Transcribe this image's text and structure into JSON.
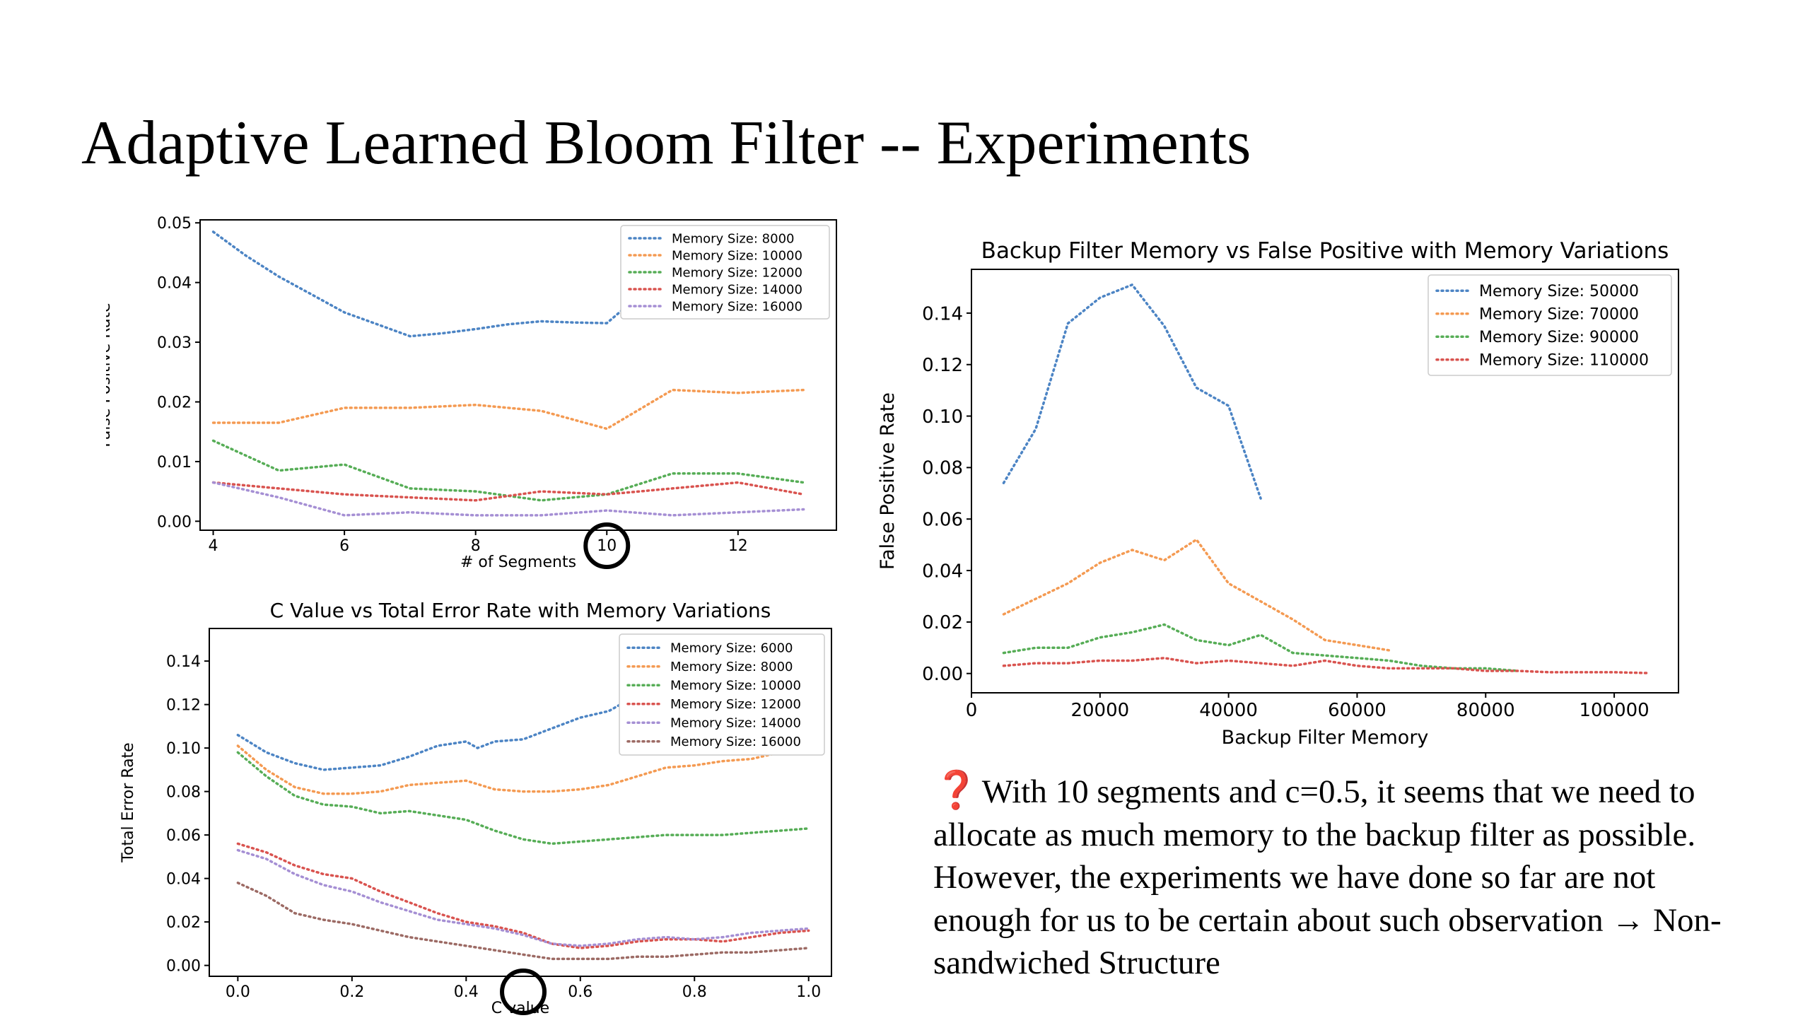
{
  "slide": {
    "title": "Adaptive Learned Bloom Filter -- Experiments",
    "note_icon": "red-question-mark-icon",
    "note_text": "With 10 segments and c=0.5, it seems that we need to allocate as much memory to the backup filter as possible. However, the experiments we have done so far are not enough for us to be certain about such observation → Non-sandwiched Structure"
  },
  "colors": {
    "blue": "#4c84c4",
    "orange": "#f49a52",
    "green": "#56ad56",
    "red": "#d9534f",
    "purple": "#a58fd4",
    "brown": "#9c6a64"
  },
  "chart_data": [
    {
      "type": "line",
      "title": "",
      "xlabel": "# of Segments",
      "ylabel": "False Positive Rate",
      "xlim": [
        3.8,
        13.5
      ],
      "ylim": [
        -0.0015,
        0.0505
      ],
      "xticks": [
        4,
        6,
        8,
        10,
        12
      ],
      "yticks": [
        0.0,
        0.01,
        0.02,
        0.03,
        0.04,
        0.05
      ],
      "ytick_labels": [
        "0.00",
        "0.01",
        "0.02",
        "0.03",
        "0.04",
        "0.05"
      ],
      "grid": false,
      "legend_position": "top-right",
      "highlight": {
        "axis": "x",
        "value": 10
      },
      "series": [
        {
          "name": "Memory Size: 8000",
          "color": "#4c84c4",
          "x": [
            4,
            4.5,
            5,
            5.5,
            6,
            6.5,
            7,
            7.5,
            8,
            8.5,
            9,
            9.5,
            10,
            10.3
          ],
          "y": [
            0.0485,
            0.0445,
            0.041,
            0.038,
            0.035,
            0.033,
            0.031,
            0.0315,
            0.0322,
            0.033,
            0.0335,
            0.0333,
            0.0332,
            0.036
          ]
        },
        {
          "name": "Memory Size: 10000",
          "color": "#f49a52",
          "x": [
            4,
            5,
            6,
            7,
            8,
            9,
            10,
            11,
            12,
            13
          ],
          "y": [
            0.0165,
            0.0165,
            0.019,
            0.019,
            0.0195,
            0.0185,
            0.0155,
            0.022,
            0.0215,
            0.022
          ]
        },
        {
          "name": "Memory Size: 12000",
          "color": "#56ad56",
          "x": [
            4,
            5,
            6,
            7,
            8,
            9,
            10,
            11,
            12,
            13
          ],
          "y": [
            0.0135,
            0.0085,
            0.0095,
            0.0055,
            0.005,
            0.0035,
            0.0045,
            0.008,
            0.008,
            0.0065
          ]
        },
        {
          "name": "Memory Size: 14000",
          "color": "#d9534f",
          "x": [
            4,
            5,
            6,
            7,
            8,
            9,
            10,
            11,
            12,
            13
          ],
          "y": [
            0.0065,
            0.0055,
            0.0045,
            0.004,
            0.0035,
            0.005,
            0.0045,
            0.0055,
            0.0065,
            0.0045
          ]
        },
        {
          "name": "Memory Size: 16000",
          "color": "#a58fd4",
          "x": [
            4,
            5,
            6,
            7,
            8,
            9,
            10,
            11,
            12,
            13
          ],
          "y": [
            0.0065,
            0.004,
            0.001,
            0.0015,
            0.001,
            0.001,
            0.0018,
            0.001,
            0.0015,
            0.002
          ]
        }
      ]
    },
    {
      "type": "line",
      "title": "C Value vs Total Error Rate with Memory Variations",
      "xlabel": "C value",
      "ylabel": "Total Error Rate",
      "xlim": [
        -0.05,
        1.04
      ],
      "ylim": [
        -0.005,
        0.155
      ],
      "xticks": [
        0.0,
        0.2,
        0.4,
        0.6,
        0.8,
        1.0
      ],
      "xtick_labels": [
        "0.0",
        "0.2",
        "0.4",
        "0.6",
        "0.8",
        "1.0"
      ],
      "yticks": [
        0.0,
        0.02,
        0.04,
        0.06,
        0.08,
        0.1,
        0.12,
        0.14
      ],
      "ytick_labels": [
        "0.00",
        "0.02",
        "0.04",
        "0.06",
        "0.08",
        "0.10",
        "0.12",
        "0.14"
      ],
      "grid": false,
      "legend_position": "top-right",
      "highlight": {
        "axis": "x",
        "value": 0.5
      },
      "series": [
        {
          "name": "Memory Size: 6000",
          "color": "#4c84c4",
          "x": [
            0.0,
            0.05,
            0.1,
            0.15,
            0.2,
            0.25,
            0.3,
            0.35,
            0.4,
            0.42,
            0.45,
            0.5,
            0.55,
            0.6,
            0.65,
            0.67
          ],
          "y": [
            0.106,
            0.098,
            0.093,
            0.09,
            0.091,
            0.092,
            0.096,
            0.101,
            0.103,
            0.1,
            0.103,
            0.104,
            0.109,
            0.114,
            0.117,
            0.12
          ]
        },
        {
          "name": "Memory Size: 8000",
          "color": "#f49a52",
          "x": [
            0.0,
            0.05,
            0.1,
            0.15,
            0.2,
            0.25,
            0.3,
            0.35,
            0.4,
            0.45,
            0.5,
            0.55,
            0.6,
            0.65,
            0.7,
            0.75,
            0.8,
            0.85,
            0.9,
            0.95,
            0.98
          ],
          "y": [
            0.101,
            0.09,
            0.082,
            0.079,
            0.079,
            0.08,
            0.083,
            0.084,
            0.085,
            0.081,
            0.08,
            0.08,
            0.081,
            0.083,
            0.087,
            0.091,
            0.092,
            0.094,
            0.095,
            0.098,
            0.101
          ]
        },
        {
          "name": "Memory Size: 10000",
          "color": "#56ad56",
          "x": [
            0.0,
            0.05,
            0.1,
            0.15,
            0.2,
            0.25,
            0.3,
            0.35,
            0.4,
            0.45,
            0.5,
            0.55,
            0.6,
            0.65,
            0.7,
            0.75,
            0.8,
            0.85,
            0.9,
            0.95,
            1.0
          ],
          "y": [
            0.098,
            0.087,
            0.078,
            0.074,
            0.073,
            0.07,
            0.071,
            0.069,
            0.067,
            0.062,
            0.058,
            0.056,
            0.057,
            0.058,
            0.059,
            0.06,
            0.06,
            0.06,
            0.061,
            0.062,
            0.063
          ]
        },
        {
          "name": "Memory Size: 12000",
          "color": "#d9534f",
          "x": [
            0.0,
            0.05,
            0.1,
            0.15,
            0.2,
            0.25,
            0.3,
            0.35,
            0.4,
            0.45,
            0.5,
            0.55,
            0.6,
            0.65,
            0.7,
            0.75,
            0.8,
            0.85,
            0.9,
            0.95,
            1.0
          ],
          "y": [
            0.056,
            0.052,
            0.046,
            0.042,
            0.04,
            0.034,
            0.029,
            0.024,
            0.02,
            0.018,
            0.015,
            0.01,
            0.008,
            0.009,
            0.011,
            0.012,
            0.012,
            0.011,
            0.013,
            0.015,
            0.016
          ]
        },
        {
          "name": "Memory Size: 14000",
          "color": "#a58fd4",
          "x": [
            0.0,
            0.05,
            0.1,
            0.15,
            0.2,
            0.25,
            0.3,
            0.35,
            0.4,
            0.45,
            0.5,
            0.55,
            0.6,
            0.65,
            0.7,
            0.75,
            0.8,
            0.85,
            0.9,
            0.95,
            1.0
          ],
          "y": [
            0.053,
            0.049,
            0.042,
            0.037,
            0.034,
            0.029,
            0.025,
            0.021,
            0.019,
            0.017,
            0.014,
            0.01,
            0.009,
            0.01,
            0.012,
            0.013,
            0.012,
            0.013,
            0.015,
            0.016,
            0.017
          ]
        },
        {
          "name": "Memory Size: 16000",
          "color": "#9c6a64",
          "x": [
            0.0,
            0.05,
            0.1,
            0.15,
            0.2,
            0.25,
            0.3,
            0.35,
            0.4,
            0.45,
            0.5,
            0.55,
            0.6,
            0.65,
            0.7,
            0.75,
            0.8,
            0.85,
            0.9,
            0.95,
            1.0
          ],
          "y": [
            0.038,
            0.032,
            0.024,
            0.021,
            0.019,
            0.016,
            0.013,
            0.011,
            0.009,
            0.007,
            0.005,
            0.003,
            0.003,
            0.003,
            0.004,
            0.004,
            0.005,
            0.006,
            0.006,
            0.007,
            0.008
          ]
        }
      ]
    },
    {
      "type": "line",
      "title": "Backup Filter Memory vs False Positive with Memory Variations",
      "xlabel": "Backup Filter Memory",
      "ylabel": "False Positive Rate",
      "xlim": [
        0,
        110000
      ],
      "ylim": [
        -0.0075,
        0.157
      ],
      "xticks": [
        0,
        20000,
        40000,
        60000,
        80000,
        100000
      ],
      "yticks": [
        0.0,
        0.02,
        0.04,
        0.06,
        0.08,
        0.1,
        0.12,
        0.14
      ],
      "ytick_labels": [
        "0.00",
        "0.02",
        "0.04",
        "0.06",
        "0.08",
        "0.10",
        "0.12",
        "0.14"
      ],
      "grid": false,
      "legend_position": "top-right",
      "series": [
        {
          "name": "Memory Size: 50000",
          "color": "#4c84c4",
          "x": [
            5000,
            10000,
            15000,
            20000,
            25000,
            30000,
            35000,
            40000,
            45000
          ],
          "y": [
            0.074,
            0.095,
            0.136,
            0.146,
            0.151,
            0.135,
            0.111,
            0.104,
            0.068
          ]
        },
        {
          "name": "Memory Size: 70000",
          "color": "#f49a52",
          "x": [
            5000,
            10000,
            15000,
            20000,
            25000,
            30000,
            35000,
            40000,
            45000,
            50000,
            55000,
            60000,
            65000
          ],
          "y": [
            0.023,
            0.029,
            0.035,
            0.043,
            0.048,
            0.044,
            0.052,
            0.035,
            0.028,
            0.021,
            0.013,
            0.011,
            0.009
          ]
        },
        {
          "name": "Memory Size: 90000",
          "color": "#56ad56",
          "x": [
            5000,
            10000,
            15000,
            20000,
            25000,
            30000,
            35000,
            40000,
            45000,
            50000,
            55000,
            60000,
            65000,
            70000,
            75000,
            80000,
            85000
          ],
          "y": [
            0.008,
            0.01,
            0.01,
            0.014,
            0.016,
            0.019,
            0.013,
            0.011,
            0.015,
            0.008,
            0.007,
            0.006,
            0.005,
            0.003,
            0.002,
            0.002,
            0.001
          ]
        },
        {
          "name": "Memory Size: 110000",
          "color": "#d9534f",
          "x": [
            5000,
            10000,
            15000,
            20000,
            25000,
            30000,
            35000,
            40000,
            45000,
            50000,
            55000,
            60000,
            65000,
            70000,
            75000,
            80000,
            85000,
            90000,
            95000,
            100000,
            105000
          ],
          "y": [
            0.003,
            0.004,
            0.004,
            0.005,
            0.005,
            0.006,
            0.004,
            0.005,
            0.004,
            0.003,
            0.005,
            0.003,
            0.002,
            0.002,
            0.002,
            0.001,
            0.001,
            0.0005,
            0.0005,
            0.0005,
            0.0002
          ]
        }
      ]
    }
  ]
}
